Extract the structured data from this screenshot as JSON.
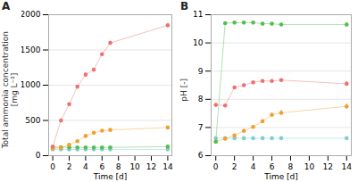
{
  "chart_data": [
    {
      "type": "line",
      "title": "A",
      "x": [
        0,
        1,
        2,
        3,
        4,
        5,
        6,
        7,
        14
      ],
      "xlabel": "Time [d]",
      "ylabel": "Total ammonia concentration\n[mg L⁻¹]",
      "xlim": [
        -0.5,
        14.5
      ],
      "xticks": [
        0,
        2,
        4,
        6,
        8,
        10,
        12,
        14
      ],
      "ylim": [
        0,
        2000
      ],
      "yticks": [
        0,
        500,
        1000,
        1500,
        2000
      ],
      "grid": "y",
      "marker": "circle",
      "series": [
        {
          "color": "#80cece",
          "values": [
            88,
            88,
            88,
            88,
            88,
            88,
            88,
            88,
            88
          ],
          "yerr": [
            3,
            3,
            3,
            3,
            3,
            3,
            3,
            3,
            3
          ]
        },
        {
          "color": "#50c050",
          "values": [
            120,
            120,
            118,
            118,
            118,
            118,
            118,
            118,
            128
          ],
          "yerr": [
            4,
            4,
            4,
            4,
            4,
            4,
            4,
            4,
            4
          ]
        },
        {
          "color": "#f0a030",
          "values": [
            105,
            115,
            155,
            205,
            280,
            325,
            355,
            365,
            400
          ],
          "yerr": [
            4,
            4,
            6,
            6,
            8,
            8,
            8,
            8,
            12
          ]
        },
        {
          "color": "#f07070",
          "values": [
            130,
            500,
            730,
            980,
            1150,
            1220,
            1440,
            1600,
            1850
          ],
          "yerr": [
            8,
            12,
            15,
            18,
            18,
            18,
            18,
            20,
            25
          ]
        }
      ]
    },
    {
      "type": "line",
      "title": "B",
      "x": [
        0,
        1,
        2,
        3,
        4,
        5,
        6,
        7,
        14
      ],
      "xlabel": "Time [d]",
      "ylabel": "pH [-]",
      "xlim": [
        -0.5,
        14.5
      ],
      "xticks": [
        0,
        2,
        4,
        6,
        8,
        10,
        12,
        14
      ],
      "ylim": [
        6,
        11
      ],
      "yticks": [
        6,
        7,
        8,
        9,
        10,
        11
      ],
      "grid": "y",
      "marker": "circle",
      "series": [
        {
          "color": "#80cece",
          "values": [
            6.62,
            6.62,
            6.62,
            6.62,
            6.62,
            6.62,
            6.62,
            6.62,
            6.62
          ],
          "yerr": [
            0.0,
            0.0,
            0.0,
            0.0,
            0.0,
            0.0,
            0.0,
            0.0,
            0.0
          ]
        },
        {
          "color": "#f0a030",
          "values": [
            6.5,
            6.6,
            6.72,
            6.88,
            7.02,
            7.22,
            7.45,
            7.52,
            7.75
          ],
          "yerr": [
            0.04,
            0.04,
            0.04,
            0.06,
            0.06,
            0.08,
            0.08,
            0.1,
            0.1
          ]
        },
        {
          "color": "#f07070",
          "values": [
            7.8,
            7.78,
            8.42,
            8.5,
            8.6,
            8.65,
            8.65,
            8.68,
            8.55
          ],
          "yerr": [
            0.04,
            0.04,
            0.04,
            0.04,
            0.04,
            0.04,
            0.04,
            0.04,
            0.08
          ]
        },
        {
          "color": "#50c050",
          "values": [
            6.5,
            10.7,
            10.72,
            10.72,
            10.72,
            10.68,
            10.68,
            10.65,
            10.65
          ],
          "yerr": [
            0.04,
            0.04,
            0.04,
            0.04,
            0.04,
            0.04,
            0.04,
            0.04,
            0.08
          ]
        }
      ]
    }
  ]
}
